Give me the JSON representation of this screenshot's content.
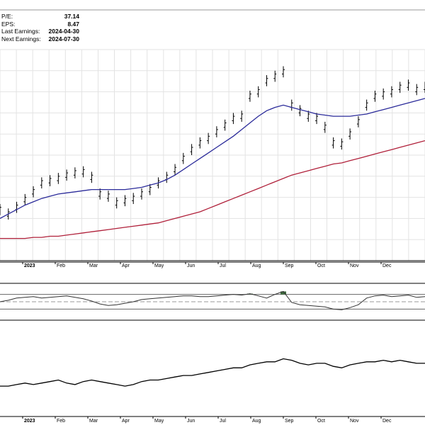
{
  "stats": [
    {
      "label": "P/E:",
      "value": "37.14"
    },
    {
      "label": "EPS:",
      "value": "8.47"
    },
    {
      "label": "Last Earnings:",
      "value": "2024-04-30"
    },
    {
      "label": "Next Earnings:",
      "value": "2024-07-30"
    }
  ],
  "chart_data": [
    {
      "type": "line",
      "panel": "price",
      "grid": true,
      "x_ticks": [
        "2023",
        "Feb",
        "Mar",
        "Apr",
        "May",
        "Jun",
        "Jul",
        "Aug",
        "Sep",
        "Oct",
        "Nov",
        "Dec"
      ],
      "x": [
        "2023-01-03",
        "2023-01-10",
        "2023-01-17",
        "2023-01-24",
        "2023-01-31",
        "2023-02-07",
        "2023-02-14",
        "2023-02-21",
        "2023-02-28",
        "2023-03-07",
        "2023-03-14",
        "2023-03-21",
        "2023-03-28",
        "2023-04-04",
        "2023-04-11",
        "2023-04-18",
        "2023-04-25",
        "2023-05-02",
        "2023-05-09",
        "2023-05-16",
        "2023-05-23",
        "2023-05-30",
        "2023-06-06",
        "2023-06-13",
        "2023-06-20",
        "2023-06-27",
        "2023-07-04",
        "2023-07-11",
        "2023-07-18",
        "2023-07-25",
        "2023-08-01",
        "2023-08-08",
        "2023-08-15",
        "2023-08-22",
        "2023-08-29",
        "2023-09-05",
        "2023-09-12",
        "2023-09-19",
        "2023-09-26",
        "2023-10-03",
        "2023-10-10",
        "2023-10-17",
        "2023-10-24",
        "2023-10-31",
        "2023-11-07",
        "2023-11-14",
        "2023-11-21",
        "2023-11-28",
        "2023-12-05",
        "2023-12-12",
        "2023-12-19",
        "2023-12-26"
      ],
      "series": [
        {
          "role": "price-bars",
          "color": "#000000",
          "values": [
            66,
            62,
            68,
            75,
            82,
            90,
            92,
            94,
            97,
            99,
            100,
            95,
            80,
            78,
            72,
            74,
            76,
            80,
            84,
            90,
            95,
            102,
            112,
            120,
            126,
            130,
            136,
            142,
            148,
            150,
            168,
            172,
            182,
            186,
            190,
            160,
            155,
            150,
            148,
            140,
            126,
            125,
            134,
            145,
            160,
            168,
            170,
            172,
            176,
            178,
            174,
            176
          ]
        },
        {
          "role": "moving-average-short",
          "color": "#2b2b9a",
          "values": [
            58,
            62,
            66,
            70,
            73,
            76,
            78,
            80,
            81,
            82,
            83,
            84,
            84,
            84,
            84,
            84,
            85,
            86,
            88,
            90,
            93,
            97,
            102,
            107,
            112,
            117,
            122,
            127,
            132,
            138,
            144,
            150,
            155,
            158,
            160,
            158,
            156,
            154,
            152,
            151,
            150,
            150,
            150,
            151,
            152,
            154,
            156,
            158,
            160,
            162,
            164,
            166
          ]
        },
        {
          "role": "moving-average-long",
          "color": "#b0203a",
          "values": [
            40,
            40,
            40,
            40,
            41,
            41,
            42,
            42,
            43,
            44,
            45,
            46,
            47,
            48,
            49,
            50,
            51,
            52,
            53,
            54,
            56,
            58,
            60,
            62,
            64,
            67,
            70,
            73,
            76,
            79,
            82,
            85,
            88,
            91,
            94,
            97,
            99,
            101,
            103,
            105,
            107,
            108,
            110,
            112,
            114,
            116,
            118,
            120,
            122,
            124,
            126,
            128
          ]
        }
      ]
    },
    {
      "type": "line",
      "panel": "oscillator",
      "ylim": [
        0,
        100
      ],
      "reference_lines": [
        30,
        50,
        70
      ],
      "x": [
        "2023-01-03",
        "2023-01-10",
        "2023-01-17",
        "2023-01-24",
        "2023-01-31",
        "2023-02-07",
        "2023-02-14",
        "2023-02-21",
        "2023-02-28",
        "2023-03-07",
        "2023-03-14",
        "2023-03-21",
        "2023-03-28",
        "2023-04-04",
        "2023-04-11",
        "2023-04-18",
        "2023-04-25",
        "2023-05-02",
        "2023-05-09",
        "2023-05-16",
        "2023-05-23",
        "2023-05-30",
        "2023-06-06",
        "2023-06-13",
        "2023-06-20",
        "2023-06-27",
        "2023-07-04",
        "2023-07-11",
        "2023-07-18",
        "2023-07-25",
        "2023-08-01",
        "2023-08-08",
        "2023-08-15",
        "2023-08-22",
        "2023-08-29",
        "2023-09-05",
        "2023-09-12",
        "2023-09-19",
        "2023-09-26",
        "2023-10-03",
        "2023-10-10",
        "2023-10-17",
        "2023-10-24",
        "2023-10-31",
        "2023-11-07",
        "2023-11-14",
        "2023-11-21",
        "2023-11-28",
        "2023-12-05",
        "2023-12-12",
        "2023-12-19",
        "2023-12-26"
      ],
      "series": [
        {
          "color": "#333333",
          "overbought_fill": "#3d6e3d",
          "values": [
            50,
            54,
            60,
            62,
            64,
            60,
            62,
            64,
            66,
            62,
            58,
            52,
            44,
            40,
            42,
            46,
            50,
            56,
            58,
            60,
            62,
            64,
            66,
            66,
            64,
            64,
            66,
            68,
            70,
            68,
            72,
            66,
            60,
            70,
            78,
            48,
            42,
            40,
            38,
            36,
            30,
            28,
            34,
            42,
            60,
            66,
            68,
            64,
            66,
            68,
            62,
            64
          ]
        }
      ]
    },
    {
      "type": "line",
      "panel": "relative-strength",
      "x": [
        "2023-01-03",
        "2023-01-10",
        "2023-01-17",
        "2023-01-24",
        "2023-01-31",
        "2023-02-07",
        "2023-02-14",
        "2023-02-21",
        "2023-02-28",
        "2023-03-07",
        "2023-03-14",
        "2023-03-21",
        "2023-03-28",
        "2023-04-04",
        "2023-04-11",
        "2023-04-18",
        "2023-04-25",
        "2023-05-02",
        "2023-05-09",
        "2023-05-16",
        "2023-05-23",
        "2023-05-30",
        "2023-06-06",
        "2023-06-13",
        "2023-06-20",
        "2023-06-27",
        "2023-07-04",
        "2023-07-11",
        "2023-07-18",
        "2023-07-25",
        "2023-08-01",
        "2023-08-08",
        "2023-08-15",
        "2023-08-22",
        "2023-08-29",
        "2023-09-05",
        "2023-09-12",
        "2023-09-19",
        "2023-09-26",
        "2023-10-03",
        "2023-10-10",
        "2023-10-17",
        "2023-10-24",
        "2023-10-31",
        "2023-11-07",
        "2023-11-14",
        "2023-11-21",
        "2023-11-28",
        "2023-12-05",
        "2023-12-12",
        "2023-12-19",
        "2023-12-26"
      ],
      "series": [
        {
          "color": "#000000",
          "values": [
            40,
            40,
            41,
            42,
            41,
            42,
            43,
            44,
            42,
            41,
            43,
            44,
            43,
            42,
            41,
            40,
            41,
            43,
            44,
            44,
            45,
            46,
            47,
            47,
            48,
            49,
            50,
            51,
            52,
            52,
            54,
            55,
            56,
            56,
            58,
            57,
            55,
            54,
            55,
            55,
            53,
            52,
            54,
            55,
            56,
            56,
            57,
            56,
            57,
            56,
            55,
            55
          ]
        }
      ]
    }
  ]
}
